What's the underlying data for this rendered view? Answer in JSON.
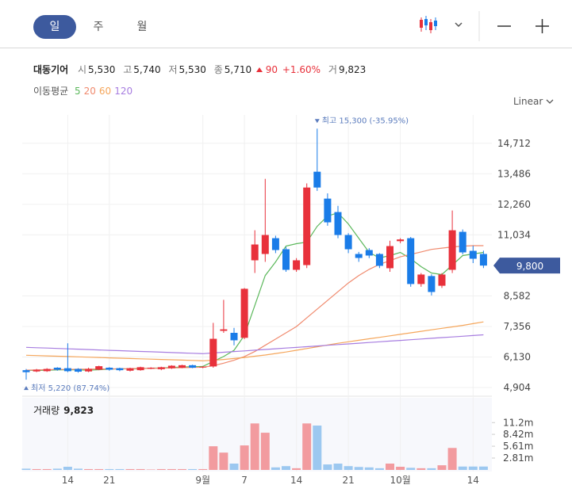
{
  "tabs": [
    "일",
    "주",
    "월"
  ],
  "selected_tab": 0,
  "stock": {
    "name": "대동기어",
    "open_label": "시",
    "open": "5,530",
    "high_label": "고",
    "high": "5,740",
    "low_label": "저",
    "low": "5,530",
    "close_label": "종",
    "close": "5,710",
    "change": "90",
    "change_pct": "+1.60%",
    "volume_label": "거",
    "volume": "9,823"
  },
  "ma_title": "이동평균",
  "scale_mode": "Linear",
  "chart_data": [
    {
      "type": "candlestick",
      "categories": [
        null,
        null,
        null,
        null,
        "14",
        null,
        null,
        null,
        "21",
        null,
        null,
        null,
        null,
        null,
        null,
        null,
        null,
        "9월",
        null,
        null,
        null,
        "7",
        null,
        null,
        null,
        null,
        "14",
        null,
        null,
        null,
        null,
        "21",
        null,
        null,
        null,
        null,
        "10월",
        null,
        null,
        null,
        null,
        null,
        null,
        "14",
        null
      ],
      "open": [
        5600,
        5550,
        5560,
        5700,
        5680,
        5650,
        5550,
        5620,
        5700,
        5680,
        5580,
        5600,
        5660,
        5640,
        5680,
        5700,
        5800,
        5710,
        5750,
        7180,
        7100,
        6900,
        10012,
        10266,
        10900,
        10456,
        9630,
        9820,
        13569,
        12489,
        11949,
        11028,
        10266,
        10424,
        10266,
        9694,
        10780,
        10900,
        9060,
        9380,
        8990,
        9630,
        11155,
        10392,
        10266
      ],
      "high": [
        5650,
        5650,
        5680,
        5720,
        6680,
        5680,
        5700,
        5780,
        5720,
        5700,
        5700,
        5740,
        5720,
        5740,
        5800,
        5820,
        5820,
        5760,
        7500,
        8424,
        7300,
        8900,
        11218,
        13283,
        11000,
        10550,
        10100,
        13100,
        15300,
        12700,
        12200,
        11100,
        10350,
        10500,
        10300,
        10800,
        10900,
        10950,
        9500,
        9450,
        9500,
        12012,
        11250,
        10600,
        10400
      ],
      "low": [
        5220,
        5520,
        5530,
        5580,
        5520,
        5500,
        5520,
        5600,
        5580,
        5560,
        5550,
        5580,
        5640,
        5600,
        5650,
        5680,
        5680,
        5680,
        5700,
        7100,
        6600,
        6850,
        9503,
        9950,
        10300,
        9550,
        9550,
        9700,
        12800,
        11400,
        10900,
        10300,
        9950,
        10100,
        9700,
        9550,
        10700,
        8950,
        8950,
        8600,
        8900,
        9500,
        10250,
        9900,
        9700
      ],
      "close": [
        5520,
        5620,
        5650,
        5620,
        5560,
        5540,
        5650,
        5760,
        5620,
        5600,
        5680,
        5720,
        5700,
        5720,
        5780,
        5800,
        5700,
        5740,
        6860,
        7240,
        6800,
        8868,
        10647,
        11028,
        10424,
        9630,
        10012,
        12934,
        12934,
        11536,
        11028,
        10456,
        10107,
        10203,
        9790,
        10583,
        10850,
        9060,
        9440,
        8740,
        9440,
        11218,
        10330,
        10075,
        9800
      ],
      "up_color": "#e8313b",
      "down_color": "#1a7ce8",
      "series": [
        {
          "name": "5",
          "color": "#5cb85c",
          "values": [
            5600,
            5590,
            5600,
            5610,
            5620,
            5610,
            5600,
            5620,
            5640,
            5660,
            5650,
            5660,
            5680,
            5690,
            5710,
            5730,
            5740,
            5750,
            5950,
            6150,
            6400,
            7000,
            8200,
            9400,
            9948,
            10583,
            10678,
            10742,
            11377,
            11790,
            11917,
            11473,
            10900,
            10330,
            10107,
            10203,
            10330,
            10075,
            9757,
            9503,
            9440,
            9820,
            10203,
            10266,
            10330
          ]
        },
        {
          "name": "20",
          "color": "#f08a6e",
          "values": [
            5600,
            5610,
            5620,
            5630,
            5630,
            5640,
            5640,
            5650,
            5650,
            5660,
            5660,
            5670,
            5670,
            5680,
            5690,
            5700,
            5710,
            5720,
            5780,
            5880,
            6000,
            6150,
            6350,
            6600,
            6850,
            7100,
            7350,
            7700,
            8050,
            8400,
            8750,
            9100,
            9400,
            9650,
            9850,
            10000,
            10150,
            10250,
            10350,
            10450,
            10500,
            10550,
            10580,
            10600,
            10600
          ]
        },
        {
          "name": "60",
          "color": "#f5a65b",
          "values": [
            6200,
            6187,
            6174,
            6161,
            6148,
            6135,
            6122,
            6109,
            6096,
            6083,
            6070,
            6057,
            6044,
            6031,
            6018,
            6005,
            5992,
            5978,
            6000,
            6030,
            6070,
            6110,
            6160,
            6210,
            6270,
            6330,
            6400,
            6470,
            6540,
            6610,
            6680,
            6740,
            6800,
            6860,
            6920,
            6980,
            7040,
            7100,
            7160,
            7220,
            7280,
            7340,
            7400,
            7470,
            7540
          ]
        },
        {
          "name": "120",
          "color": "#a77de0",
          "values": [
            6518,
            6503,
            6488,
            6473,
            6458,
            6443,
            6428,
            6413,
            6398,
            6383,
            6368,
            6353,
            6338,
            6323,
            6308,
            6293,
            6278,
            6264,
            6292,
            6320,
            6348,
            6376,
            6404,
            6432,
            6460,
            6488,
            6516,
            6544,
            6572,
            6600,
            6628,
            6656,
            6684,
            6712,
            6740,
            6768,
            6796,
            6824,
            6852,
            6880,
            6908,
            6936,
            6964,
            6992,
            7020
          ]
        }
      ],
      "ylim": [
        4650,
        15850
      ],
      "yticks": [
        {
          "value": 4904,
          "label": "4,904"
        },
        {
          "value": 6130,
          "label": "6,130"
        },
        {
          "value": 7356,
          "label": "7,356"
        },
        {
          "value": 8582,
          "label": "8,582"
        },
        {
          "value": 11034,
          "label": "11,034"
        },
        {
          "value": 12260,
          "label": "12,260"
        },
        {
          "value": 13486,
          "label": "13,486"
        },
        {
          "value": 14712,
          "label": "14,712"
        }
      ],
      "grid": true,
      "high_annotation": "최고 15,300 (-35.95%)",
      "low_annotation": "최저 5,220 (87.74%)",
      "last_price": {
        "value": 9800,
        "label": "9,800"
      },
      "last_price_color": "#3d5a9e"
    },
    {
      "type": "volume",
      "title": "거래량",
      "last_volume": "9,823",
      "values": [
        0.3,
        0.2,
        0.2,
        0.3,
        0.75,
        0.3,
        0.2,
        0.2,
        0.2,
        0.2,
        0.2,
        0.2,
        0.1,
        0.2,
        0.2,
        0.2,
        0.2,
        0.2,
        5.6,
        4.1,
        1.5,
        5.8,
        11.0,
        8.8,
        0.6,
        0.9,
        0.4,
        11.0,
        10.5,
        1.3,
        1.5,
        0.9,
        0.7,
        0.6,
        0.4,
        1.5,
        0.75,
        0.5,
        0.4,
        0.4,
        1.1,
        5.2,
        0.8,
        0.8,
        0.8
      ],
      "up_color": "#f29b9f",
      "down_color": "#9cc8f0",
      "ylim": [
        0,
        16.5
      ],
      "yticks": [
        {
          "value": 2.81,
          "label": "2.81m"
        },
        {
          "value": 5.61,
          "label": "5.61m"
        },
        {
          "value": 8.42,
          "label": "8.42m"
        },
        {
          "value": 11.2,
          "label": "11.2m"
        }
      ]
    }
  ]
}
